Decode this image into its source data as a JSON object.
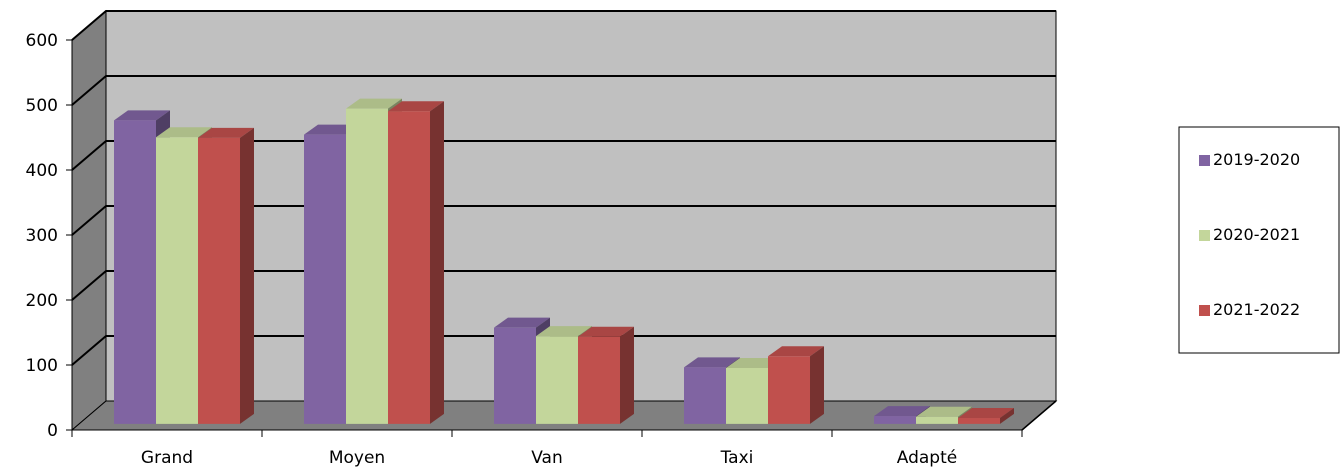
{
  "chart_data": {
    "type": "bar",
    "title": "",
    "xlabel": "",
    "ylabel": "",
    "categories": [
      "Grand",
      "Moyen",
      "Van",
      "Taxi",
      "Adapté"
    ],
    "series": [
      {
        "name": "2019-2020",
        "values": [
          467,
          445,
          148,
          87,
          12
        ],
        "color": "#8064A2"
      },
      {
        "name": "2020-2021",
        "values": [
          441,
          485,
          135,
          86,
          11
        ],
        "color": "#C3D69B"
      },
      {
        "name": "2021-2022",
        "values": [
          440,
          481,
          134,
          104,
          9
        ],
        "color": "#C0504D"
      }
    ],
    "ylim": [
      0,
      600
    ],
    "yticks": [
      0,
      100,
      200,
      300,
      400,
      500,
      600
    ],
    "grid": true,
    "legend": "right",
    "wall_color": "#C0C0C0",
    "floor_color": "#808080"
  }
}
